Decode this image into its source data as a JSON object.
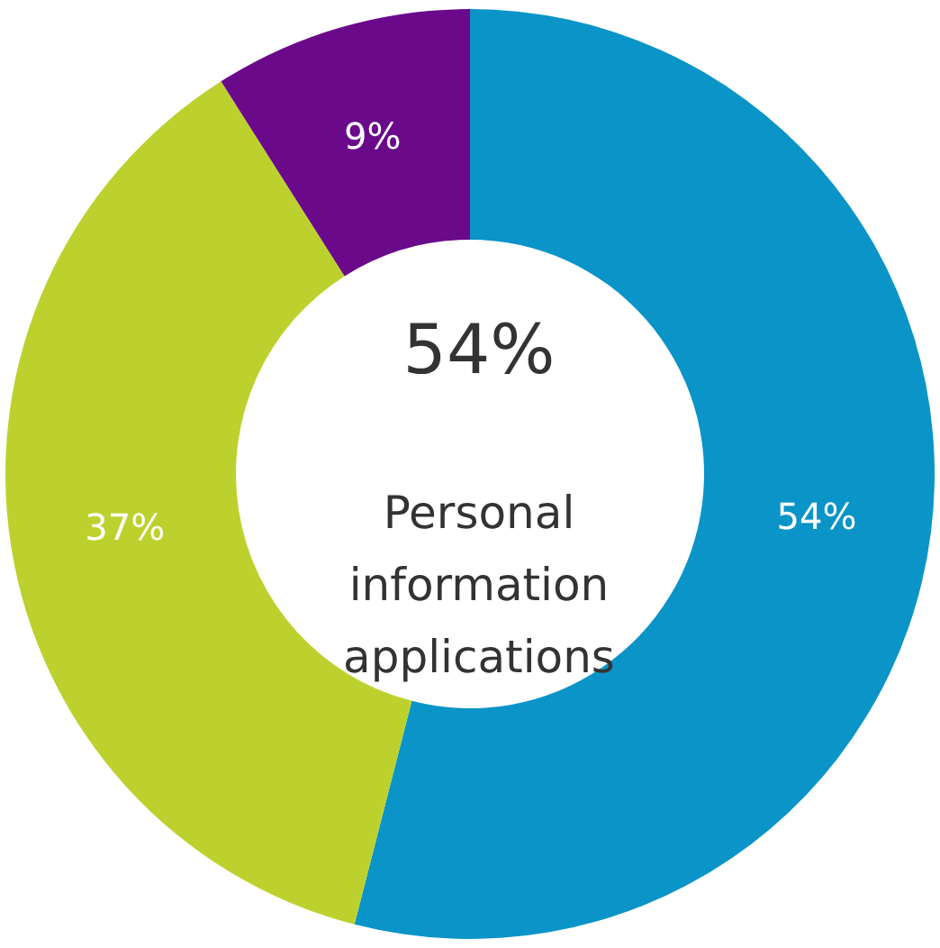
{
  "chart_data": {
    "type": "donut",
    "categories": [
      null,
      null,
      null
    ],
    "values": [
      54,
      37,
      9
    ],
    "colors": [
      "#0a94c8",
      "#bdd12e",
      "#6a0a8a"
    ],
    "value_labels": [
      "54%",
      "37%",
      "9%"
    ],
    "annotations": [
      "54%",
      "Personal information applications"
    ]
  }
}
